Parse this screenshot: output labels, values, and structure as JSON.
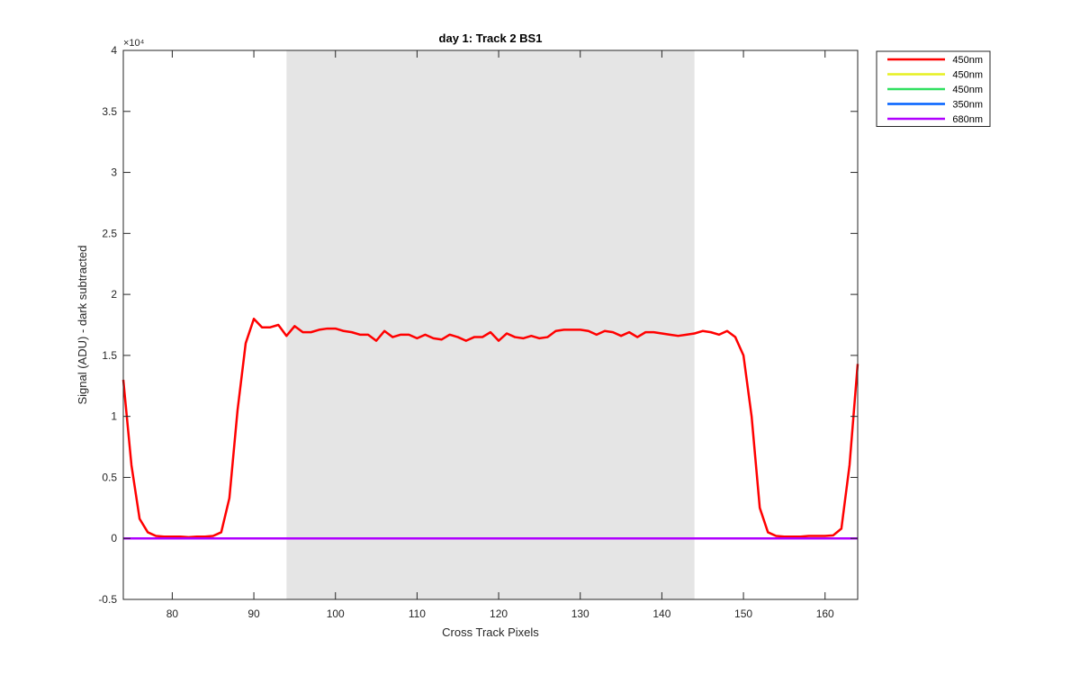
{
  "chart_data": {
    "type": "line",
    "title": "day 1: Track 2  BS1",
    "xlabel": "Cross Track Pixels",
    "ylabel": "Signal (ADU) - dark subtracted",
    "y_exponent_label": "×10⁴",
    "y_display_scale": 10000,
    "xlim": [
      74,
      164
    ],
    "ylim": [
      -5000,
      40000
    ],
    "xticks": [
      80,
      90,
      100,
      110,
      120,
      130,
      140,
      150,
      160
    ],
    "yticks": [
      -5000,
      0,
      5000,
      10000,
      15000,
      20000,
      25000,
      30000,
      35000,
      40000
    ],
    "ytick_labels": [
      "-0.5",
      "0",
      "0.5",
      "1",
      "1.5",
      "2",
      "2.5",
      "3",
      "3.5",
      "4"
    ],
    "shaded_region": {
      "x": [
        94,
        144
      ],
      "color": "#e5e5e5"
    },
    "grid": false,
    "legend": {
      "placement": "outside-top-right"
    },
    "x": [
      74,
      75,
      76,
      77,
      78,
      79,
      80,
      81,
      82,
      83,
      84,
      85,
      86,
      87,
      88,
      89,
      90,
      91,
      92,
      93,
      94,
      95,
      96,
      97,
      98,
      99,
      100,
      101,
      102,
      103,
      104,
      105,
      106,
      107,
      108,
      109,
      110,
      111,
      112,
      113,
      114,
      115,
      116,
      117,
      118,
      119,
      120,
      121,
      122,
      123,
      124,
      125,
      126,
      127,
      128,
      129,
      130,
      131,
      132,
      133,
      134,
      135,
      136,
      137,
      138,
      139,
      140,
      141,
      142,
      143,
      144,
      145,
      146,
      147,
      148,
      149,
      150,
      151,
      152,
      153,
      154,
      155,
      156,
      157,
      158,
      159,
      160,
      161,
      162,
      163,
      164
    ],
    "series": [
      {
        "name": "450nm",
        "color": "#ff0000",
        "values": [
          13000,
          6000,
          1600,
          500,
          200,
          150,
          150,
          150,
          100,
          150,
          150,
          200,
          500,
          3300,
          10500,
          16000,
          18000,
          17300,
          17300,
          17500,
          16600,
          17400,
          16900,
          16900,
          17100,
          17200,
          17200,
          17000,
          16900,
          16700,
          16700,
          16200,
          17000,
          16500,
          16700,
          16700,
          16400,
          16700,
          16400,
          16300,
          16700,
          16500,
          16200,
          16500,
          16500,
          16900,
          16200,
          16800,
          16500,
          16400,
          16600,
          16400,
          16500,
          17000,
          17100,
          17100,
          17100,
          17000,
          16700,
          17000,
          16900,
          16600,
          16900,
          16500,
          16900,
          16900,
          16800,
          16700,
          16600,
          16700,
          16800,
          17000,
          16900,
          16700,
          17000,
          16500,
          15000,
          10000,
          2500,
          500,
          200,
          150,
          150,
          150,
          200,
          200,
          200,
          250,
          800,
          6000,
          14300
        ]
      },
      {
        "name": "450nm",
        "color": "#e6f020",
        "values": [
          0,
          0,
          0,
          0,
          0,
          0,
          0,
          0,
          0,
          0,
          0,
          0,
          0,
          0,
          0,
          0,
          0,
          0,
          0,
          0,
          0,
          0,
          0,
          0,
          0,
          0,
          0,
          0,
          0,
          0,
          0,
          0,
          0,
          0,
          0,
          0,
          0,
          0,
          0,
          0,
          0,
          0,
          0,
          0,
          0,
          0,
          0,
          0,
          0,
          0,
          0,
          0,
          0,
          0,
          0,
          0,
          0,
          0,
          0,
          0,
          0,
          0,
          0,
          0,
          0,
          0,
          0,
          0,
          0,
          0,
          0,
          0,
          0,
          0,
          0,
          0,
          0,
          0,
          0,
          0,
          0,
          0,
          0,
          0,
          0,
          0,
          0,
          0,
          0,
          0,
          0
        ]
      },
      {
        "name": "450nm",
        "color": "#30e060",
        "values": [
          0,
          0,
          0,
          0,
          0,
          0,
          0,
          0,
          0,
          0,
          0,
          0,
          0,
          0,
          0,
          0,
          0,
          0,
          0,
          0,
          0,
          0,
          0,
          0,
          0,
          0,
          0,
          0,
          0,
          0,
          0,
          0,
          0,
          0,
          0,
          0,
          0,
          0,
          0,
          0,
          0,
          0,
          0,
          0,
          0,
          0,
          0,
          0,
          0,
          0,
          0,
          0,
          0,
          0,
          0,
          0,
          0,
          0,
          0,
          0,
          0,
          0,
          0,
          0,
          0,
          0,
          0,
          0,
          0,
          0,
          0,
          0,
          0,
          0,
          0,
          0,
          0,
          0,
          0,
          0,
          0,
          0,
          0,
          0,
          0,
          0,
          0,
          0,
          0,
          0,
          0
        ]
      },
      {
        "name": "350nm",
        "color": "#0060ff",
        "values": [
          0,
          0,
          0,
          0,
          0,
          0,
          0,
          0,
          0,
          0,
          0,
          0,
          0,
          0,
          0,
          0,
          0,
          0,
          0,
          0,
          0,
          0,
          0,
          0,
          0,
          0,
          0,
          0,
          0,
          0,
          0,
          0,
          0,
          0,
          0,
          0,
          0,
          0,
          0,
          0,
          0,
          0,
          0,
          0,
          0,
          0,
          0,
          0,
          0,
          0,
          0,
          0,
          0,
          0,
          0,
          0,
          0,
          0,
          0,
          0,
          0,
          0,
          0,
          0,
          0,
          0,
          0,
          0,
          0,
          0,
          0,
          0,
          0,
          0,
          0,
          0,
          0,
          0,
          0,
          0,
          0,
          0,
          0,
          0,
          0,
          0,
          0,
          0,
          0,
          0,
          0
        ]
      },
      {
        "name": "680nm",
        "color": "#b000ff",
        "values": [
          0,
          0,
          0,
          0,
          0,
          0,
          0,
          0,
          0,
          0,
          0,
          0,
          0,
          0,
          0,
          0,
          0,
          0,
          0,
          0,
          0,
          0,
          0,
          0,
          0,
          0,
          0,
          0,
          0,
          0,
          0,
          0,
          0,
          0,
          0,
          0,
          0,
          0,
          0,
          0,
          0,
          0,
          0,
          0,
          0,
          0,
          0,
          0,
          0,
          0,
          0,
          0,
          0,
          0,
          0,
          0,
          0,
          0,
          0,
          0,
          0,
          0,
          0,
          0,
          0,
          0,
          0,
          0,
          0,
          0,
          0,
          0,
          0,
          0,
          0,
          0,
          0,
          0,
          0,
          0,
          0,
          0,
          0,
          0,
          0,
          0,
          0,
          0,
          0,
          0,
          0
        ]
      }
    ]
  }
}
